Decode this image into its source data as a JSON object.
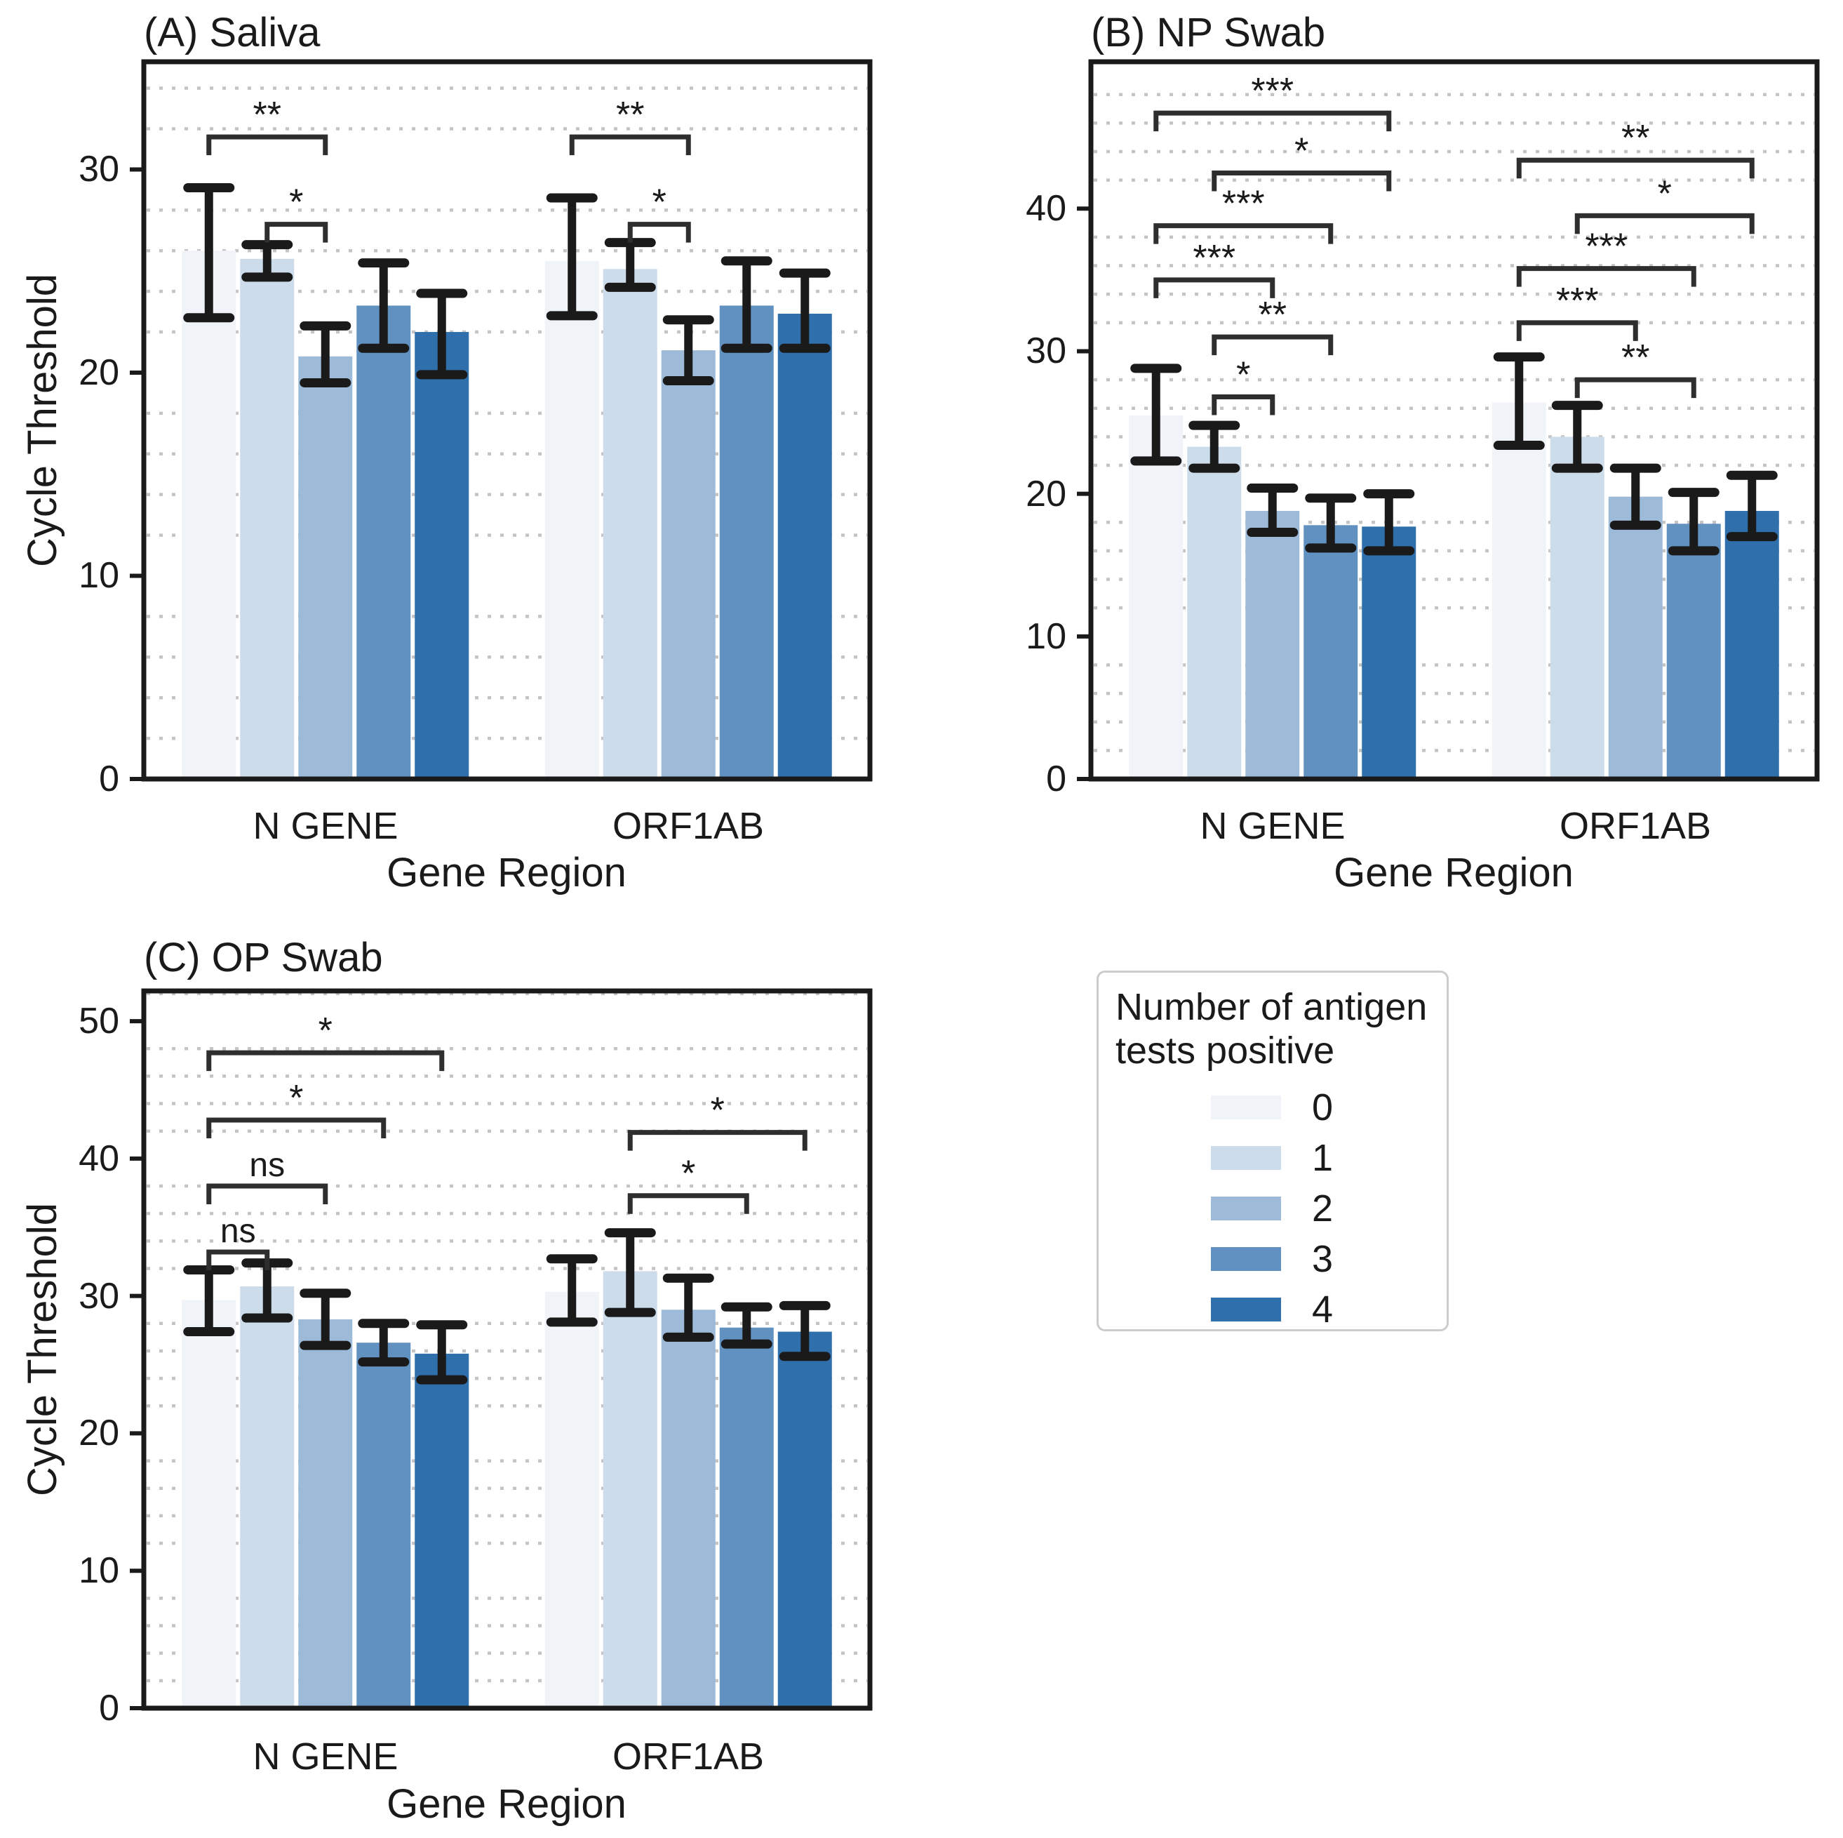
{
  "legend": {
    "title_lines": [
      "Number of antigen",
      "tests positive"
    ],
    "entries": [
      {
        "label": "0",
        "color": "#f0f3f7"
      },
      {
        "label": "1",
        "color": "#cddcea"
      },
      {
        "label": "2",
        "color": "#9dbbd9"
      },
      {
        "label": "3",
        "color": "#6191c1"
      },
      {
        "label": "4",
        "color": "#2e6fac"
      }
    ]
  },
  "style": {
    "grid_color": "#c4c4c4",
    "spine_color": "#1a1a1a",
    "errorbar_color": "#1a1a1a",
    "bracket_color": "#2e2e2e",
    "text_color": "#1a1a1a"
  },
  "chart_data": [
    {
      "type": "bar",
      "panel_label": "A",
      "title": "(A) Saliva",
      "xlabel": "Gene Region",
      "ylabel": "Cycle Threshold",
      "categories": [
        "N GENE",
        "ORF1AB"
      ],
      "ylim": [
        0,
        35.3
      ],
      "yticks": [
        0,
        10,
        20,
        30
      ],
      "minor_grid_step": 2,
      "grid": "dotted",
      "series": [
        {
          "name": "0",
          "color": "#f0f3f7",
          "values": [
            26.0,
            25.5
          ],
          "err_lo": [
            22.7,
            22.8
          ],
          "err_hi": [
            29.1,
            28.6
          ]
        },
        {
          "name": "1",
          "color": "#cddcea",
          "values": [
            25.6,
            25.1
          ],
          "err_lo": [
            24.7,
            24.2
          ],
          "err_hi": [
            26.3,
            26.4
          ]
        },
        {
          "name": "2",
          "color": "#9dbbd9",
          "values": [
            20.8,
            21.1
          ],
          "err_lo": [
            19.5,
            19.6
          ],
          "err_hi": [
            22.3,
            22.6
          ]
        },
        {
          "name": "3",
          "color": "#6191c1",
          "values": [
            23.3,
            23.3
          ],
          "err_lo": [
            21.2,
            21.2
          ],
          "err_hi": [
            25.4,
            25.5
          ]
        },
        {
          "name": "4",
          "color": "#2e6fac",
          "values": [
            22.0,
            22.9
          ],
          "err_lo": [
            19.9,
            21.2
          ],
          "err_hi": [
            23.9,
            24.9
          ]
        }
      ],
      "significance": [
        {
          "category": "N GENE",
          "between": [
            "0",
            "2"
          ],
          "label": "**",
          "y": 31.6
        },
        {
          "category": "N GENE",
          "between": [
            "1",
            "2"
          ],
          "label": "*",
          "y": 27.3
        },
        {
          "category": "ORF1AB",
          "between": [
            "0",
            "2"
          ],
          "label": "**",
          "y": 31.6
        },
        {
          "category": "ORF1AB",
          "between": [
            "1",
            "2"
          ],
          "label": "*",
          "y": 27.3
        }
      ]
    },
    {
      "type": "bar",
      "panel_label": "B",
      "title": "(B) NP Swab",
      "xlabel": "Gene Region",
      "ylabel": null,
      "categories": [
        "N GENE",
        "ORF1AB"
      ],
      "ylim": [
        0,
        50.3
      ],
      "yticks": [
        0,
        10,
        20,
        30,
        40
      ],
      "minor_grid_step": 2,
      "grid": "dotted",
      "series": [
        {
          "name": "0",
          "color": "#f0f3f7",
          "values": [
            25.5,
            26.4
          ],
          "err_lo": [
            22.3,
            23.4
          ],
          "err_hi": [
            28.8,
            29.6
          ]
        },
        {
          "name": "1",
          "color": "#cddcea",
          "values": [
            23.3,
            24.0
          ],
          "err_lo": [
            21.8,
            21.8
          ],
          "err_hi": [
            24.8,
            26.2
          ]
        },
        {
          "name": "2",
          "color": "#9dbbd9",
          "values": [
            18.8,
            19.8
          ],
          "err_lo": [
            17.3,
            17.8
          ],
          "err_hi": [
            20.4,
            21.8
          ]
        },
        {
          "name": "3",
          "color": "#6191c1",
          "values": [
            17.8,
            17.9
          ],
          "err_lo": [
            16.2,
            16.0
          ],
          "err_hi": [
            19.7,
            20.1
          ]
        },
        {
          "name": "4",
          "color": "#2e6fac",
          "values": [
            17.7,
            18.8
          ],
          "err_lo": [
            16.0,
            17.0
          ],
          "err_hi": [
            20.0,
            21.3
          ]
        }
      ],
      "significance": [
        {
          "category": "N GENE",
          "between": [
            "0",
            "4"
          ],
          "label": "***",
          "y": 46.7
        },
        {
          "category": "N GENE",
          "between": [
            "1",
            "4"
          ],
          "label": "*",
          "y": 42.5
        },
        {
          "category": "N GENE",
          "between": [
            "0",
            "3"
          ],
          "label": "***",
          "y": 38.8
        },
        {
          "category": "N GENE",
          "between": [
            "0",
            "2"
          ],
          "label": "***",
          "y": 35.0
        },
        {
          "category": "N GENE",
          "between": [
            "1",
            "3"
          ],
          "label": "**",
          "y": 31.0
        },
        {
          "category": "N GENE",
          "between": [
            "1",
            "2"
          ],
          "label": "*",
          "y": 26.8
        },
        {
          "category": "ORF1AB",
          "between": [
            "0",
            "4"
          ],
          "label": "**",
          "y": 43.4
        },
        {
          "category": "ORF1AB",
          "between": [
            "1",
            "4"
          ],
          "label": "*",
          "y": 39.5
        },
        {
          "category": "ORF1AB",
          "between": [
            "0",
            "3"
          ],
          "label": "***",
          "y": 35.8
        },
        {
          "category": "ORF1AB",
          "between": [
            "0",
            "2"
          ],
          "label": "***",
          "y": 32.0
        },
        {
          "category": "ORF1AB",
          "between": [
            "1",
            "3"
          ],
          "label": "**",
          "y": 28.0
        }
      ]
    },
    {
      "type": "bar",
      "panel_label": "C",
      "title": "(C) OP Swab",
      "xlabel": "Gene Region",
      "ylabel": "Cycle Threshold",
      "categories": [
        "N GENE",
        "ORF1AB"
      ],
      "ylim": [
        0,
        52.2
      ],
      "yticks": [
        0,
        10,
        20,
        30,
        40,
        50
      ],
      "minor_grid_step": 2,
      "grid": "dotted",
      "series": [
        {
          "name": "0",
          "color": "#f0f3f7",
          "values": [
            29.7,
            30.3
          ],
          "err_lo": [
            27.4,
            28.1
          ],
          "err_hi": [
            31.9,
            32.7
          ]
        },
        {
          "name": "1",
          "color": "#cddcea",
          "values": [
            30.7,
            31.8
          ],
          "err_lo": [
            28.4,
            28.8
          ],
          "err_hi": [
            32.4,
            34.6
          ]
        },
        {
          "name": "2",
          "color": "#9dbbd9",
          "values": [
            28.3,
            29.0
          ],
          "err_lo": [
            26.4,
            27.0
          ],
          "err_hi": [
            30.2,
            31.3
          ]
        },
        {
          "name": "3",
          "color": "#6191c1",
          "values": [
            26.6,
            27.7
          ],
          "err_lo": [
            25.2,
            26.5
          ],
          "err_hi": [
            28.0,
            29.2
          ]
        },
        {
          "name": "4",
          "color": "#2e6fac",
          "values": [
            25.8,
            27.4
          ],
          "err_lo": [
            23.9,
            25.6
          ],
          "err_hi": [
            27.9,
            29.3
          ]
        }
      ],
      "significance": [
        {
          "category": "N GENE",
          "between": [
            "0",
            "4"
          ],
          "label": "*",
          "y": 47.7
        },
        {
          "category": "N GENE",
          "between": [
            "0",
            "3"
          ],
          "label": "*",
          "y": 42.8
        },
        {
          "category": "N GENE",
          "between": [
            "0",
            "2"
          ],
          "label": "ns",
          "y": 38.0
        },
        {
          "category": "N GENE",
          "between": [
            "0",
            "1"
          ],
          "label": "ns",
          "y": 33.2
        },
        {
          "category": "ORF1AB",
          "between": [
            "1",
            "4"
          ],
          "label": "*",
          "y": 41.9
        },
        {
          "category": "ORF1AB",
          "between": [
            "1",
            "3"
          ],
          "label": "*",
          "y": 37.3
        }
      ]
    }
  ]
}
